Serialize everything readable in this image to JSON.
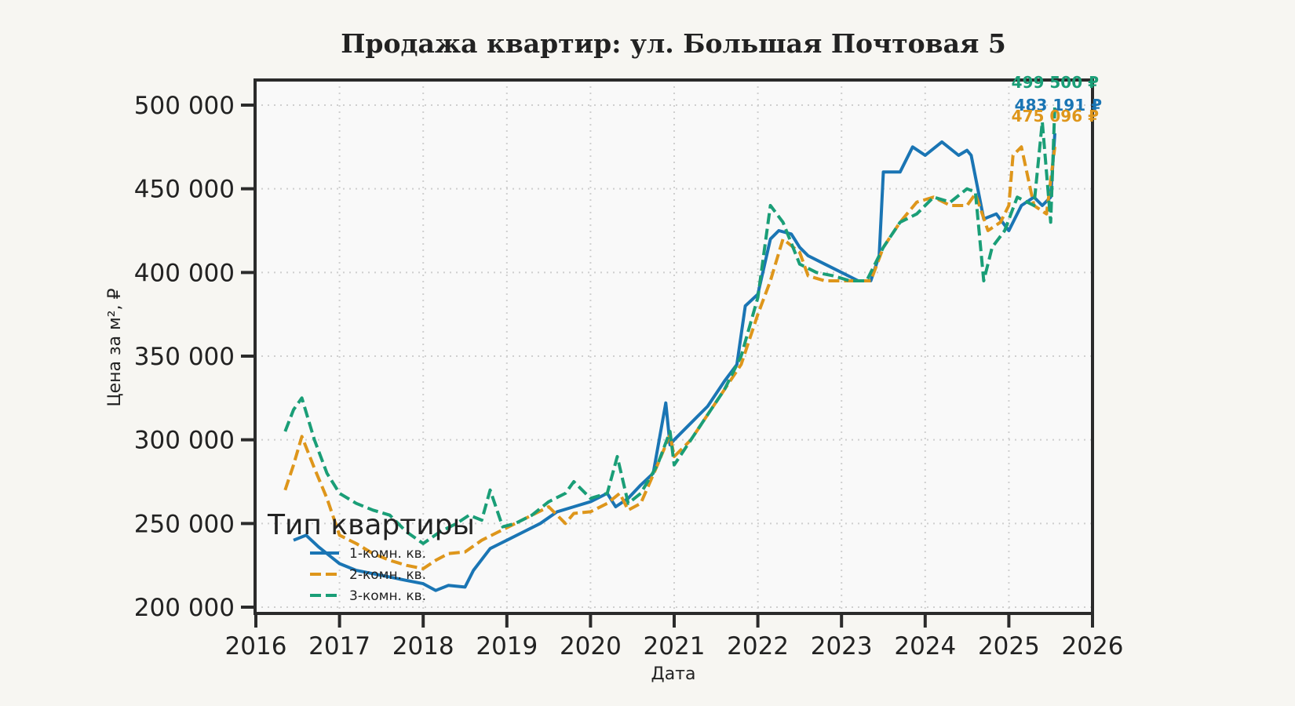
{
  "chart_data": {
    "type": "line",
    "title": "Продажа квартир: ул. Большая Почтовая 5",
    "xlabel": "Дата",
    "ylabel": "Цена за м², ₽",
    "xlim": [
      2016,
      2026
    ],
    "ylim": [
      195000,
      515000
    ],
    "x_ticks": [
      "2016",
      "2017",
      "2018",
      "2019",
      "2020",
      "2021",
      "2022",
      "2023",
      "2024",
      "2025",
      "2026"
    ],
    "y_ticks": [
      "200 000",
      "250 000",
      "300 000",
      "350 000",
      "400 000",
      "450 000",
      "500 000"
    ],
    "grid": true,
    "legend": {
      "title": "Тип квартиры",
      "position": "lower left",
      "entries": [
        "1-комн. кв.",
        "2-комн. кв.",
        "3-комн. кв."
      ]
    },
    "end_labels": [
      {
        "series": "3-комн. кв.",
        "text": "499 500 ₽",
        "color": "#1a9e77"
      },
      {
        "series": "1-комн. кв.",
        "text": "483 191 ₽",
        "color": "#1a75b4"
      },
      {
        "series": "2-комн. кв.",
        "text": "475 096 ₽",
        "color": "#de961b"
      }
    ],
    "series": [
      {
        "name": "1-комн. кв.",
        "color": "#1a75b4",
        "style": "solid",
        "x": [
          2016.45,
          2016.6,
          2016.75,
          2016.9,
          2017.0,
          2017.2,
          2017.4,
          2017.6,
          2017.8,
          2018.0,
          2018.15,
          2018.3,
          2018.5,
          2018.6,
          2018.8,
          2019.0,
          2019.2,
          2019.4,
          2019.6,
          2019.8,
          2020.0,
          2020.2,
          2020.3,
          2020.45,
          2020.6,
          2020.75,
          2020.9,
          2020.95,
          2021.0,
          2021.2,
          2021.4,
          2021.6,
          2021.75,
          2021.85,
          2022.0,
          2022.15,
          2022.25,
          2022.4,
          2022.5,
          2022.6,
          2022.8,
          2023.0,
          2023.2,
          2023.35,
          2023.45,
          2023.5,
          2023.7,
          2023.85,
          2024.0,
          2024.2,
          2024.4,
          2024.5,
          2024.55,
          2024.7,
          2024.85,
          2025.0,
          2025.15,
          2025.3,
          2025.4,
          2025.5,
          2025.55
        ],
        "values": [
          240000,
          243000,
          236000,
          230000,
          226000,
          222000,
          220000,
          218000,
          216000,
          214000,
          210000,
          213000,
          212000,
          222000,
          235000,
          240000,
          245000,
          250000,
          257000,
          260000,
          263000,
          268000,
          260000,
          265000,
          273000,
          280000,
          322000,
          297000,
          300000,
          310000,
          320000,
          335000,
          345000,
          380000,
          387000,
          420000,
          425000,
          423000,
          415000,
          410000,
          405000,
          400000,
          395000,
          395000,
          410000,
          460000,
          460000,
          475000,
          470000,
          478000,
          470000,
          473000,
          470000,
          432000,
          435000,
          425000,
          440000,
          445000,
          440000,
          445000,
          483191
        ]
      },
      {
        "name": "2-комн. кв.",
        "color": "#de961b",
        "style": "dashed",
        "x": [
          2016.35,
          2016.45,
          2016.55,
          2016.7,
          2016.85,
          2017.0,
          2017.2,
          2017.4,
          2017.6,
          2017.8,
          2018.0,
          2018.15,
          2018.3,
          2018.5,
          2018.7,
          2018.9,
          2019.1,
          2019.3,
          2019.5,
          2019.7,
          2019.8,
          2020.0,
          2020.2,
          2020.35,
          2020.45,
          2020.6,
          2020.8,
          2020.95,
          2021.0,
          2021.2,
          2021.4,
          2021.6,
          2021.8,
          2022.0,
          2022.15,
          2022.3,
          2022.5,
          2022.6,
          2022.8,
          2023.0,
          2023.2,
          2023.35,
          2023.5,
          2023.7,
          2023.9,
          2024.1,
          2024.3,
          2024.5,
          2024.6,
          2024.75,
          2024.9,
          2025.0,
          2025.05,
          2025.15,
          2025.3,
          2025.45,
          2025.55
        ],
        "values": [
          270000,
          285000,
          302000,
          283000,
          265000,
          243000,
          238000,
          232000,
          228000,
          225000,
          223000,
          228000,
          232000,
          233000,
          240000,
          245000,
          250000,
          255000,
          260000,
          250000,
          256000,
          257000,
          262000,
          268000,
          258000,
          262000,
          285000,
          303000,
          290000,
          300000,
          315000,
          330000,
          345000,
          375000,
          395000,
          420000,
          412000,
          398000,
          395000,
          395000,
          395000,
          395000,
          415000,
          430000,
          442000,
          445000,
          440000,
          440000,
          447000,
          425000,
          430000,
          440000,
          470000,
          475000,
          440000,
          435000,
          475096
        ]
      },
      {
        "name": "3-комн. кв.",
        "color": "#1a9e77",
        "style": "dashed",
        "x": [
          2016.35,
          2016.45,
          2016.55,
          2016.7,
          2016.85,
          2017.0,
          2017.2,
          2017.4,
          2017.6,
          2017.8,
          2018.0,
          2018.2,
          2018.4,
          2018.55,
          2018.7,
          2018.8,
          2018.95,
          2019.1,
          2019.3,
          2019.5,
          2019.7,
          2019.8,
          2020.0,
          2020.2,
          2020.32,
          2020.45,
          2020.6,
          2020.8,
          2020.95,
          2021.0,
          2021.2,
          2021.4,
          2021.6,
          2021.8,
          2022.0,
          2022.15,
          2022.3,
          2022.5,
          2022.7,
          2022.9,
          2023.1,
          2023.3,
          2023.5,
          2023.7,
          2023.9,
          2024.1,
          2024.3,
          2024.5,
          2024.6,
          2024.7,
          2024.8,
          2024.95,
          2025.1,
          2025.3,
          2025.4,
          2025.5,
          2025.55
        ],
        "values": [
          305000,
          318000,
          325000,
          300000,
          280000,
          268000,
          262000,
          258000,
          255000,
          245000,
          238000,
          245000,
          250000,
          255000,
          252000,
          270000,
          248000,
          250000,
          255000,
          263000,
          268000,
          275000,
          265000,
          268000,
          290000,
          262000,
          268000,
          285000,
          305000,
          285000,
          300000,
          315000,
          330000,
          350000,
          385000,
          440000,
          430000,
          405000,
          400000,
          398000,
          395000,
          395000,
          415000,
          430000,
          435000,
          445000,
          442000,
          450000,
          448000,
          395000,
          415000,
          425000,
          445000,
          440000,
          490000,
          430000,
          499500
        ]
      }
    ]
  }
}
